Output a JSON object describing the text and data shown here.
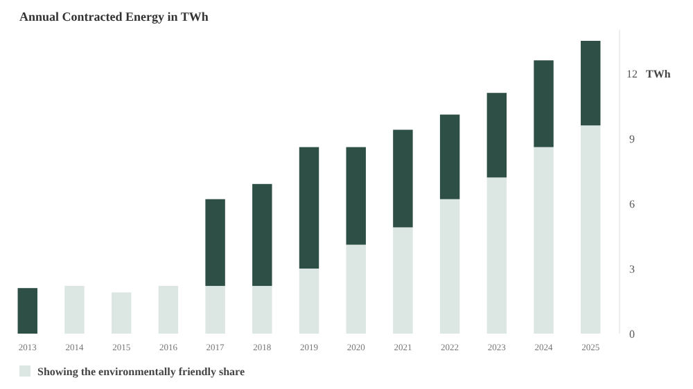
{
  "chart_data": {
    "type": "bar",
    "title": "Annual Contracted Energy in TWh",
    "ylabel": "TWh",
    "categories": [
      "2013",
      "2014",
      "2015",
      "2016",
      "2017",
      "2018",
      "2019",
      "2020",
      "2021",
      "2022",
      "2023",
      "2024",
      "2025"
    ],
    "stacked": true,
    "series": [
      {
        "name": "Showing the environmentally friendly share",
        "color": "#dce6e3",
        "values": [
          0,
          2.2,
          1.9,
          2.2,
          2.2,
          2.2,
          3.0,
          4.1,
          4.9,
          6.2,
          7.2,
          8.6,
          9.6
        ]
      },
      {
        "color": "#2e4f45",
        "values": [
          2.1,
          0,
          0,
          0,
          4.0,
          4.7,
          5.6,
          4.5,
          4.5,
          3.9,
          3.9,
          4.0,
          3.9
        ]
      }
    ],
    "ylim": [
      0,
      14
    ],
    "yticks": [
      0,
      3,
      6,
      9,
      12
    ],
    "grid": false,
    "legend": "bottom"
  }
}
